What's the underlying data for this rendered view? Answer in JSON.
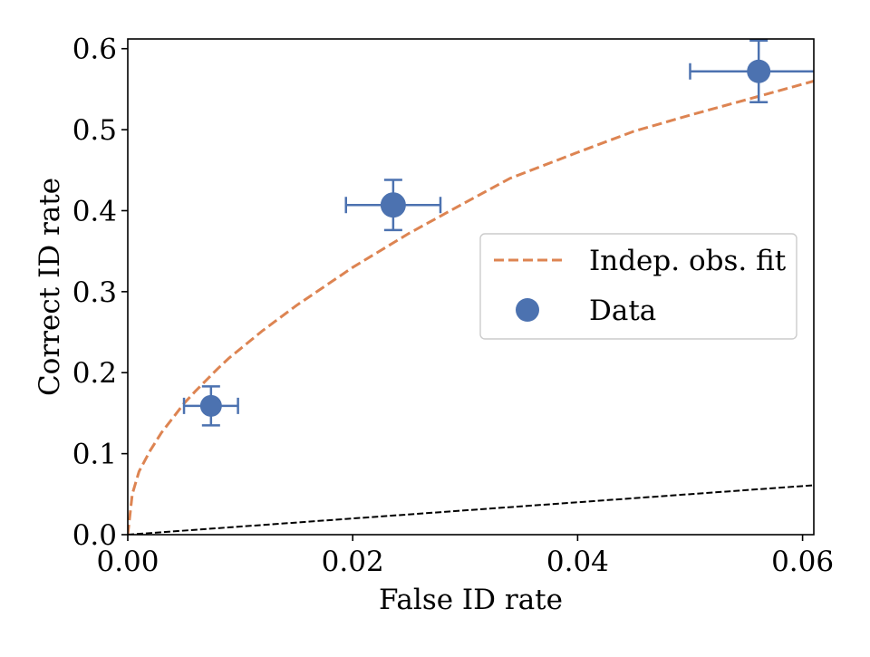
{
  "chart_data": {
    "type": "scatter",
    "xlabel": "False ID rate",
    "ylabel": "Correct ID rate",
    "xlim": [
      0.0,
      0.061
    ],
    "ylim": [
      0.0,
      0.612
    ],
    "x_ticks": [
      "0.00",
      "0.02",
      "0.04",
      "0.06"
    ],
    "y_ticks": [
      "0.0",
      "0.1",
      "0.2",
      "0.3",
      "0.4",
      "0.5",
      "0.6"
    ],
    "grid": false,
    "legend_position": "center-right",
    "series": [
      {
        "name": "Data",
        "kind": "points_with_errorbars",
        "color": "#4c72b0",
        "points": [
          {
            "x": 0.0074,
            "y": 0.159,
            "xerr": 0.0024,
            "yerr": 0.024
          },
          {
            "x": 0.0236,
            "y": 0.407,
            "xerr": 0.0042,
            "yerr": 0.031
          },
          {
            "x": 0.0561,
            "y": 0.572,
            "xerr": 0.0061,
            "yerr": 0.038
          }
        ]
      },
      {
        "name": "Indep. obs. fit",
        "kind": "dashed_line",
        "color": "#dd8452",
        "x": [
          0.0,
          0.0004,
          0.001,
          0.002,
          0.003,
          0.004,
          0.005,
          0.006,
          0.008,
          0.009,
          0.012,
          0.015,
          0.02,
          0.025,
          0.03,
          0.034,
          0.04,
          0.045,
          0.05,
          0.055,
          0.061
        ],
        "y": [
          0.0,
          0.05,
          0.078,
          0.104,
          0.126,
          0.144,
          0.162,
          0.177,
          0.205,
          0.218,
          0.252,
          0.283,
          0.33,
          0.372,
          0.41,
          0.44,
          0.472,
          0.498,
          0.518,
          0.537,
          0.56
        ]
      },
      {
        "kind": "dashed_line",
        "color": "#000000",
        "x": [
          0.0,
          0.061
        ],
        "y": [
          0.0,
          0.061
        ]
      }
    ],
    "legend": [
      {
        "label": "Indep. obs. fit",
        "marker": "dashed-line",
        "color": "#dd8452"
      },
      {
        "label": "Data",
        "marker": "circle",
        "color": "#4c72b0"
      }
    ]
  }
}
